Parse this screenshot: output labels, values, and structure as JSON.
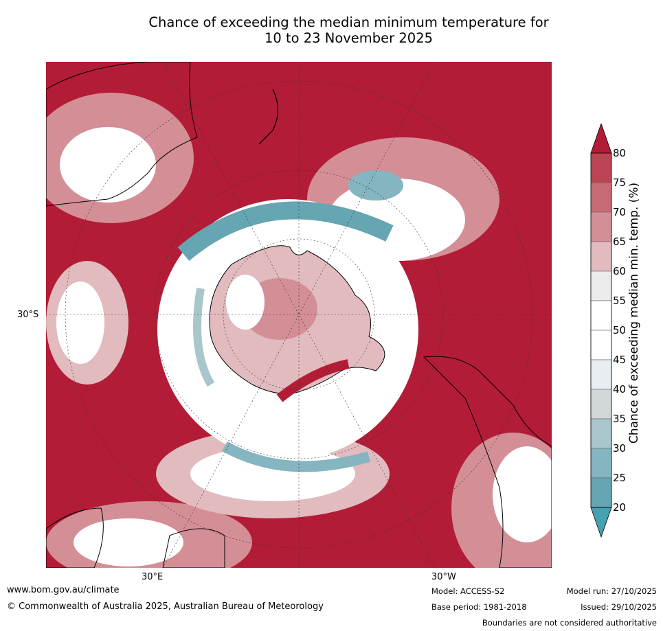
{
  "title": {
    "line1": "Chance of exceeding the median minimum temperature for",
    "line2": "10 to 23 November 2025"
  },
  "map": {
    "projection": "south polar stereographic",
    "graticule_labels": {
      "lat_left": "30°S",
      "lon_bottom_left": "30°E",
      "lon_bottom_right": "30°W"
    }
  },
  "colorbar": {
    "label": "Chance of exceeding median min. temp. (%)",
    "ticks": [
      "80",
      "75",
      "70",
      "65",
      "60",
      "55",
      "50",
      "45",
      "40",
      "35",
      "30",
      "25",
      "20"
    ],
    "bands": [
      {
        "range": "above 80",
        "color": "#b31c36"
      },
      {
        "range": "75-80",
        "color": "#bd4452"
      },
      {
        "range": "70-75",
        "color": "#c86a74"
      },
      {
        "range": "65-70",
        "color": "#d48e96"
      },
      {
        "range": "60-65",
        "color": "#e1bbbe"
      },
      {
        "range": "55-60",
        "color": "#ecebeb"
      },
      {
        "range": "50-55",
        "color": "#ffffff"
      },
      {
        "range": "45-50",
        "color": "#ffffff"
      },
      {
        "range": "40-45",
        "color": "#e7edf0"
      },
      {
        "range": "35-40",
        "color": "#d2d7d9"
      },
      {
        "range": "30-35",
        "color": "#a9c6cc"
      },
      {
        "range": "25-30",
        "color": "#84b5c0"
      },
      {
        "range": "20-25",
        "color": "#66a5b2"
      },
      {
        "range": "below 20",
        "color": "#46a1b2"
      }
    ]
  },
  "footer": {
    "website": "www.bom.gov.au/climate",
    "copyright": "© Commonwealth of Australia 2025, Australian Bureau of Meteorology",
    "model": "Model: ACCESS-S2",
    "base_period": "Base period: 1981-2018",
    "model_run": "Model run: 27/10/2025",
    "issued": "Issued: 29/10/2025",
    "disclaimer": "Boundaries are not considered authoritative"
  }
}
